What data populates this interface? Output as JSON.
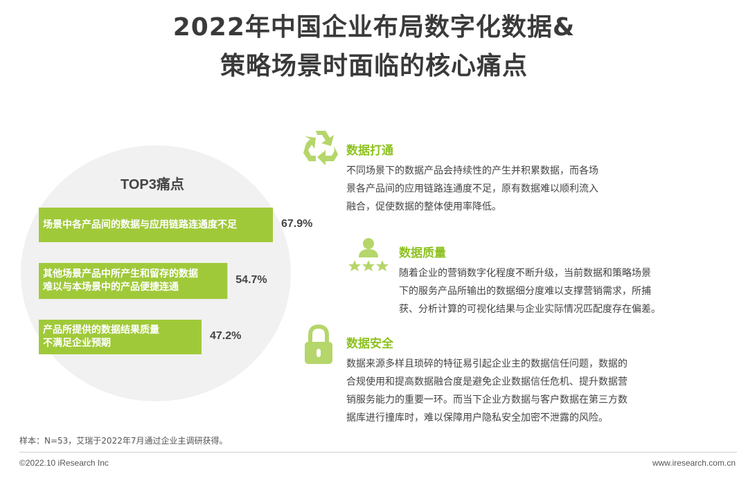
{
  "title": {
    "line1": "2022年中国企业布局数字化数据&",
    "line2": "策略场景时面临的核心痛点"
  },
  "chart_data": {
    "type": "bar",
    "title": "TOP3痛点",
    "orientation": "horizontal",
    "categories": [
      [
        "场景中各产品间的数据与应用链路连通度不足"
      ],
      [
        "其他场景产品中所产生和留存的数据",
        "难以与本场景中的产品便捷连通"
      ],
      [
        "产品所提供的数据结果质量",
        "不满足企业预期"
      ]
    ],
    "values": [
      67.9,
      54.7,
      47.2
    ],
    "value_labels": [
      "67.9%",
      "54.7%",
      "47.2%"
    ],
    "bar_color": "#a0c93a"
  },
  "items": [
    {
      "title": "数据打通",
      "icon": "recycle-arrows-icon",
      "desc": [
        "不同场景下的数据产品会持续性的产生并积累数据，而各场",
        "景各产品间的应用链路连通度不足，原有数据难以顺利流入",
        "融合，促使数据的整体使用率降低。"
      ]
    },
    {
      "title": "数据质量",
      "icon": "user-stars-icon",
      "desc": [
        "随着企业的营销数字化程度不断升级，当前数据和策略场景",
        "下的服务产品所输出的数据细分度难以支撑营销需求，所捕",
        "获、分析计算的可视化结果与企业实际情况匹配度存在偏差。"
      ]
    },
    {
      "title": "数据安全",
      "icon": "padlock-icon",
      "desc": [
        "数据来源多样且琐碎的特征易引起企业主的数据信任问题，数据的",
        "合规使用和提高数据融合度是避免企业数据信任危机、提升数据营",
        "销服务能力的重要一环。而当下企业方数据与客户数据在第三方数",
        "据库进行撞库时，难以保障用户隐私安全加密不泄露的风险。"
      ]
    }
  ],
  "colors": {
    "accent": "#8dc21f",
    "bar": "#a0c93a",
    "icon": "#b5d66a"
  },
  "footer": {
    "note": "样本：N=53，艾瑞于2022年7月通过企业主调研获得。",
    "copyright": "©2022.10 iResearch Inc",
    "website": "www.iresearch.com.cn"
  }
}
